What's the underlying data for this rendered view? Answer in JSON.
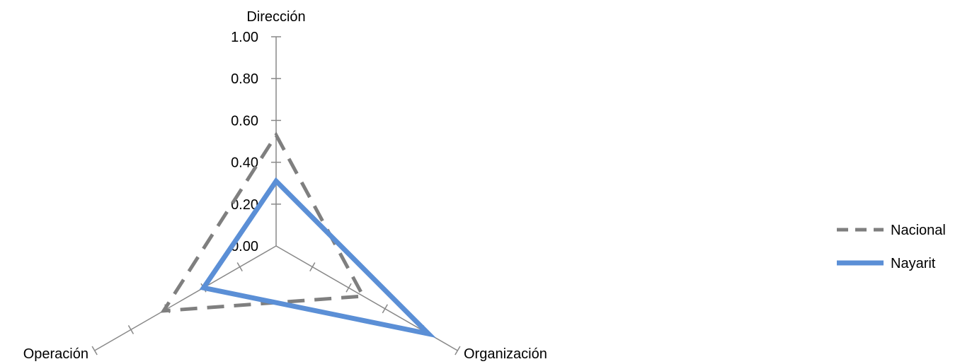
{
  "chart_data": {
    "type": "radar",
    "axes": [
      "Dirección",
      "Organización",
      "Operación"
    ],
    "rlim": [
      0,
      1.0
    ],
    "ticks": [
      "0.00",
      "0.20",
      "0.40",
      "0.60",
      "0.80",
      "1.00"
    ],
    "tick_values": [
      0,
      0.2,
      0.4,
      0.6,
      0.8,
      1.0
    ],
    "grid": false,
    "legend_position": "right",
    "series": [
      {
        "name": "Nacional",
        "values": [
          0.53,
          0.48,
          0.62
        ],
        "color": "#7f7f7f",
        "style": "dashed"
      },
      {
        "name": "Nayarit",
        "values": [
          0.31,
          0.84,
          0.4
        ],
        "color": "#5b8fd6",
        "style": "solid"
      }
    ]
  }
}
